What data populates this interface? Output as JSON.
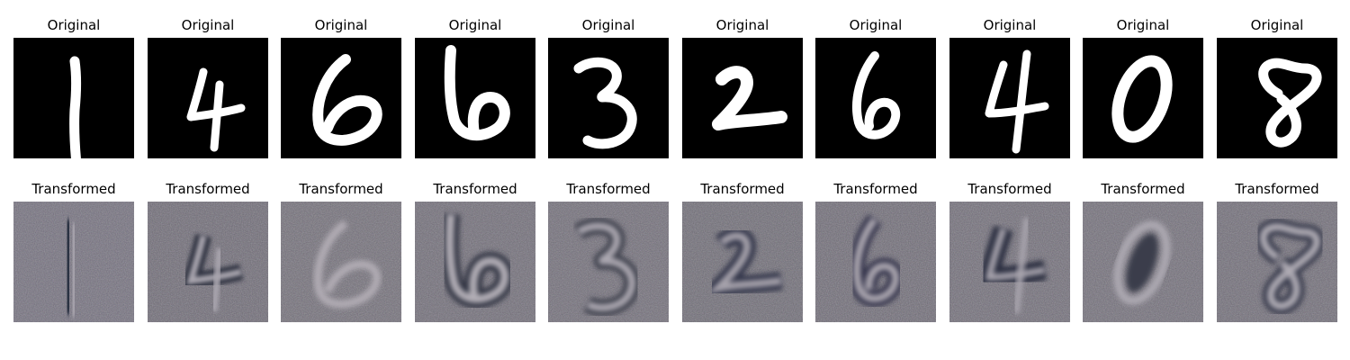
{
  "figure": {
    "top_row_title": "Original",
    "bottom_row_title": "Transformed",
    "digits": [
      {
        "label": "1",
        "original_title": "Original",
        "transformed_title": "Transformed"
      },
      {
        "label": "4",
        "original_title": "Original",
        "transformed_title": "Transformed"
      },
      {
        "label": "6",
        "original_title": "Original",
        "transformed_title": "Transformed"
      },
      {
        "label": "6",
        "original_title": "Original",
        "transformed_title": "Transformed"
      },
      {
        "label": "3",
        "original_title": "Original",
        "transformed_title": "Transformed"
      },
      {
        "label": "2",
        "original_title": "Original",
        "transformed_title": "Transformed"
      },
      {
        "label": "6",
        "original_title": "Original",
        "transformed_title": "Transformed"
      },
      {
        "label": "4",
        "original_title": "Original",
        "transformed_title": "Transformed"
      },
      {
        "label": "0",
        "original_title": "Original",
        "transformed_title": "Transformed"
      },
      {
        "label": "8",
        "original_title": "Original",
        "transformed_title": "Transformed"
      }
    ]
  },
  "colors": {
    "original_background": "#000000",
    "original_stroke": "#ffffff",
    "transformed_background": "#6f6b78",
    "transformed_stroke": "#b4afb7"
  }
}
